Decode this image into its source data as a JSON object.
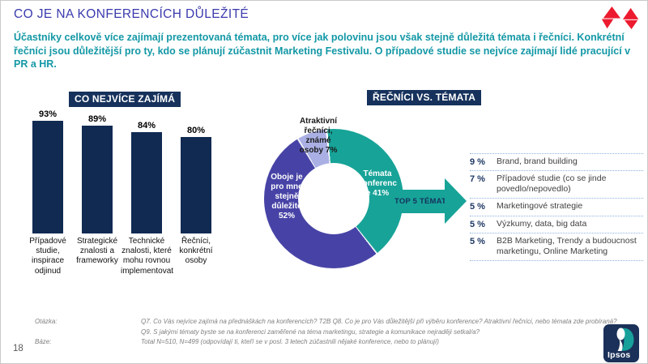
{
  "slide": {
    "title": "CO JE NA KONFERENCÍCH DŮLEŽITÉ",
    "subtitle": "Účastníky celkově více zajímají prezentovaná témata, pro více jak polovinu jsou však stejně důležitá témata i řečníci. Konkrétní řečníci jsou důležitější pro ty, kdo se plánují zúčastnit Marketing Festivalu. O případové studie se nejvíce zajímají lidé pracující v PR a HR.",
    "page_number": "18"
  },
  "colors": {
    "title_blue": "#3a3aae",
    "subtitle_teal": "#1498a6",
    "badge_navy": "#16325c",
    "bar_navy": "#102a52",
    "donut_purple": "#4743a6",
    "donut_teal": "#17a398",
    "donut_lavender": "#aab0e4",
    "list_pct_navy": "#1f3864",
    "logo_red": "#ed1b2f"
  },
  "chart_data": [
    {
      "type": "bar",
      "title": "CO NEJVÍCE ZAJÍMÁ",
      "categories": [
        "Případové studie, inspirace odjinud",
        "Strategické znalosti a frameworky",
        "Technické znalosti, které mohu rovnou implementovat",
        "Řečníci, konkrétní osoby"
      ],
      "values": [
        93,
        89,
        84,
        80
      ],
      "unit": "%",
      "bar_color": "#102a52",
      "ylim": [
        0,
        100
      ],
      "grid": false
    },
    {
      "type": "pie",
      "subtype": "donut",
      "title": "ŘEČNÍCI VS. TÉMATA",
      "start_angle_deg": -6,
      "slices": [
        {
          "label": "Témata konference",
          "value": 41,
          "color": "#17a398",
          "display_label": "Témata konference 41%"
        },
        {
          "label": "Oboje je pro mne stejně důležité",
          "value": 52,
          "color": "#4743a6",
          "display_label": "Oboje je pro mne stejně důležité 52%"
        },
        {
          "label": "Atraktivní řečníci, známé osoby",
          "value": 7,
          "color": "#aab0e4",
          "display_label": "Atraktivní řečníci, známé osoby 7%"
        }
      ]
    },
    {
      "type": "table",
      "title": "TOP 5 TÉMAT",
      "rows": [
        {
          "pct": "9 %",
          "label": "Brand, brand building"
        },
        {
          "pct": "7 %",
          "label": "Případové studie (co se jinde povedlo/nepovedlo)"
        },
        {
          "pct": "5 %",
          "label": "Marketingové strategie"
        },
        {
          "pct": "5 %",
          "label": "Výzkumy, data, big data"
        },
        {
          "pct": "5 %",
          "label": "B2B Marketing, Trendy a budoucnost marketingu, Online Marketing"
        }
      ]
    }
  ],
  "footer": {
    "question_label": "Otázka:",
    "question_line1": "Q7. Co Vás nejvíce zajímá na přednáškách na konferencích? T2B Q8. Co je pro Vás důležitější při výběru konference? Atraktivní řečníci, nebo témata zde probíraná?",
    "question_line2": "Q9. S jakými tématy byste se na konferenci zaměřené na téma marketingu, strategie a komunikace nejraději setkal/a?",
    "base_label": "Báze:",
    "base_text": "Total N=510, N=499 (odpovídají ti, kteří se v posl. 3 letech zúčastnili nějaké konference, nebo to plánují)",
    "brand": "Ipsos"
  }
}
